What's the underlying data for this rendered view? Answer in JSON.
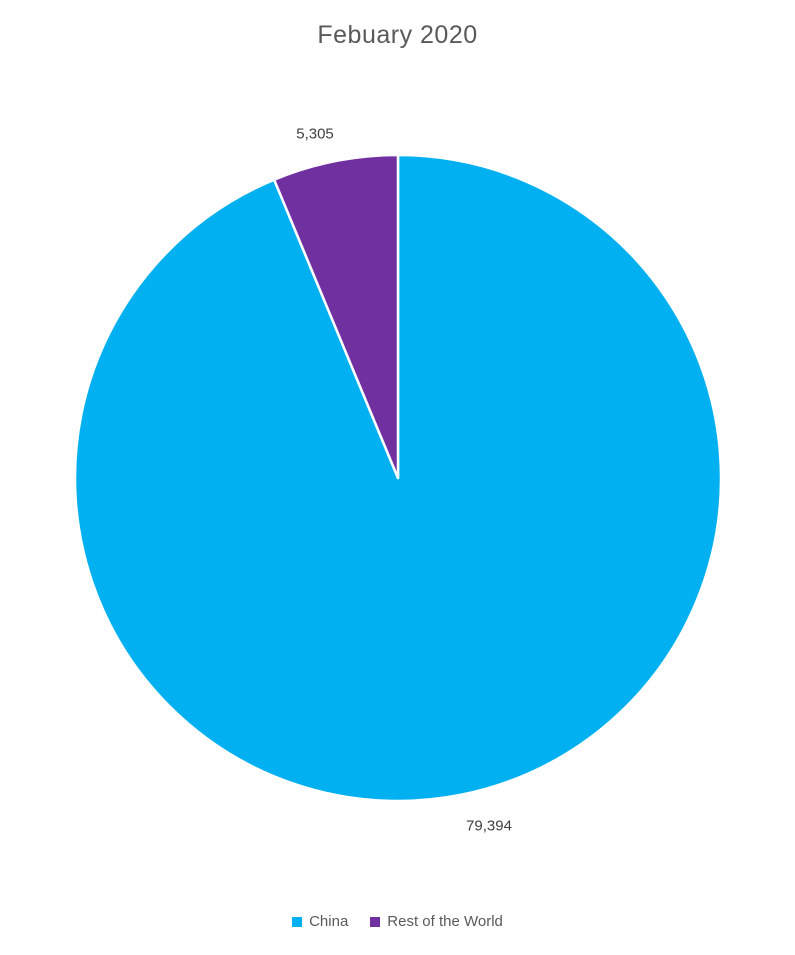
{
  "chart_data": {
    "type": "pie",
    "title": "Febuary 2020",
    "categories": [
      "China",
      "Rest of the World"
    ],
    "values": [
      79394,
      5305
    ],
    "value_labels": [
      "79,394",
      "5,305"
    ],
    "colors": [
      "#00B0F0",
      "#7030A0"
    ],
    "slice_border_color": "#FFFFFF",
    "start_angle_deg": 0,
    "direction": "clockwise",
    "data_label_position": "outside-end",
    "legend_position": "bottom",
    "title_color": "#595959",
    "data_label_color": "#404040",
    "legend_text_color": "#595959",
    "background_color": "#FFFFFF"
  }
}
